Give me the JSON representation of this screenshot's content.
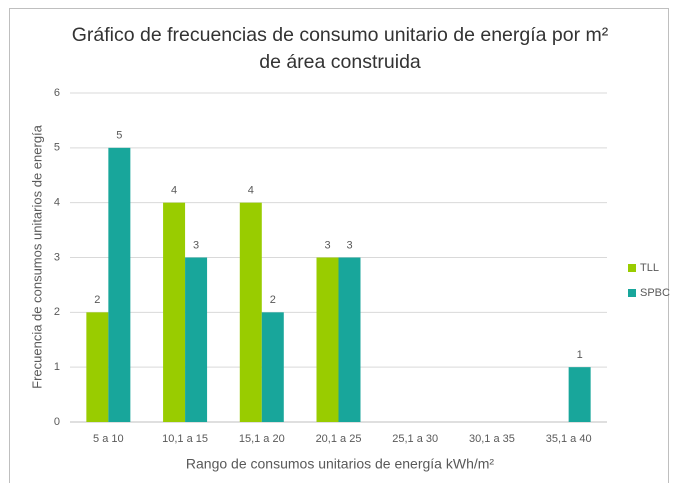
{
  "chart_data": {
    "type": "bar",
    "title": "Gráfico de frecuencias de consumo unitario de energía por m² de área construida",
    "x_label": "Rango de consumos unitarios de energía kWh/m²",
    "y_label": "Frecuencia de consumos unitarios de energía",
    "categories": [
      "5 a 10",
      "10,1 a  15",
      "15,1 a 20",
      "20,1 a 25",
      "25,1 a 30",
      "30,1 a 35",
      "35,1 a 40"
    ],
    "series": [
      {
        "name": "TLL",
        "color": "#99cc00",
        "values": [
          2,
          4,
          4,
          3,
          null,
          null,
          null
        ]
      },
      {
        "name": "SPBC",
        "color": "#18a69b",
        "values": [
          5,
          3,
          2,
          3,
          null,
          null,
          1
        ]
      }
    ],
    "ylim": [
      0,
      6
    ],
    "yticks": [
      0,
      1,
      2,
      3,
      4,
      5,
      6
    ],
    "grid": true,
    "legend": "right",
    "data_labels": true
  }
}
